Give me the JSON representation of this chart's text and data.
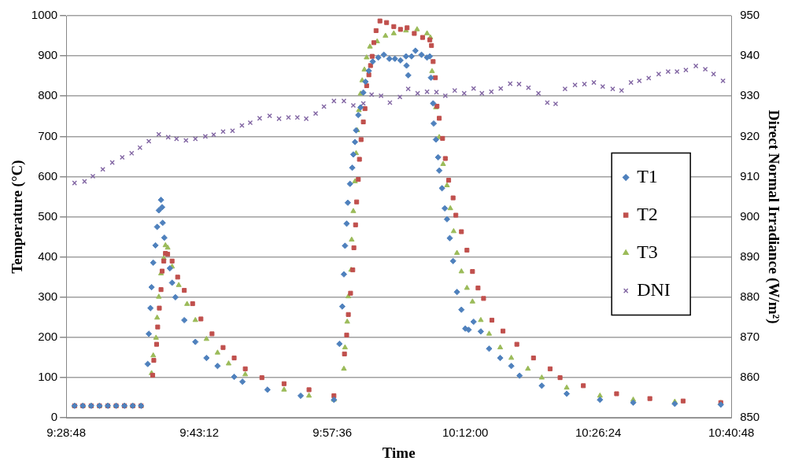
{
  "chart_data": {
    "type": "scatter",
    "xlabel": "Time",
    "ylabel": "Temperature (°C)",
    "y2label": "Direct Normal Irradiance (W/m²)",
    "xlim": [
      9.48,
      10.68
    ],
    "xticks": [
      {
        "value": 9.48,
        "label": "9:28:48"
      },
      {
        "value": 9.72,
        "label": "9:43:12"
      },
      {
        "value": 9.96,
        "label": "9:57:36"
      },
      {
        "value": 10.2,
        "label": "10:12:00"
      },
      {
        "value": 10.44,
        "label": "10:26:24"
      },
      {
        "value": 10.68,
        "label": "10:40:48"
      }
    ],
    "ylim": [
      0,
      1000
    ],
    "yticks": [
      0,
      100,
      200,
      300,
      400,
      500,
      600,
      700,
      800,
      900,
      1000
    ],
    "y2lim": [
      850,
      950
    ],
    "y2ticks": [
      850,
      860,
      870,
      880,
      890,
      900,
      910,
      920,
      930,
      940,
      950
    ],
    "grid": "y",
    "legend": "right",
    "series": [
      {
        "name": "T1",
        "color": "#4f81bd",
        "marker": "diamond",
        "x": [
          9.495,
          9.51,
          9.525,
          9.54,
          9.555,
          9.57,
          9.585,
          9.6,
          9.615,
          9.627,
          9.629,
          9.632,
          9.634,
          9.637,
          9.641,
          9.644,
          9.647,
          9.651,
          9.653,
          9.654,
          9.657,
          9.667,
          9.671,
          9.677,
          9.693,
          9.713,
          9.733,
          9.753,
          9.783,
          9.798,
          9.843,
          9.903,
          9.963,
          9.973,
          9.978,
          9.981,
          9.983,
          9.986,
          9.988,
          9.992,
          9.996,
          9.998,
          10.001,
          10.003,
          10.007,
          10.011,
          10.016,
          10.02,
          10.026,
          10.033,
          10.043,
          10.053,
          10.063,
          10.073,
          10.083,
          10.093,
          10.094,
          10.097,
          10.103,
          10.11,
          10.121,
          10.131,
          10.136,
          10.138,
          10.142,
          10.143,
          10.147,
          10.151,
          10.153,
          10.158,
          10.163,
          10.167,
          10.172,
          10.178,
          10.185,
          10.193,
          10.2,
          10.206,
          10.215,
          10.228,
          10.243,
          10.263,
          10.283,
          10.298,
          10.338,
          10.383,
          10.443,
          10.503,
          10.578,
          10.661
        ],
        "values": [
          30,
          30,
          30,
          30,
          30,
          30,
          30,
          30,
          30,
          134,
          209,
          273,
          325,
          386,
          429,
          475,
          516,
          542,
          524,
          485,
          448,
          372,
          336,
          300,
          243,
          189,
          149,
          129,
          102,
          90,
          70,
          55,
          45,
          184,
          277,
          357,
          428,
          483,
          535,
          582,
          622,
          655,
          686,
          715,
          753,
          772,
          809,
          836,
          863,
          886,
          896,
          903,
          893,
          893,
          889,
          899,
          876,
          852,
          899,
          913,
          903,
          896,
          899,
          846,
          782,
          732,
          692,
          648,
          615,
          571,
          521,
          494,
          447,
          390,
          313,
          269,
          222,
          219,
          239,
          215,
          172,
          149,
          129,
          105,
          80,
          60,
          45,
          38,
          35,
          33
        ]
      },
      {
        "name": "T2",
        "color": "#c0504d",
        "marker": "square",
        "x": [
          9.495,
          9.51,
          9.525,
          9.54,
          9.555,
          9.57,
          9.585,
          9.6,
          9.615,
          9.636,
          9.638,
          9.643,
          9.645,
          9.648,
          9.651,
          9.653,
          9.656,
          9.659,
          9.663,
          9.671,
          9.681,
          9.693,
          9.708,
          9.723,
          9.743,
          9.763,
          9.783,
          9.803,
          9.833,
          9.873,
          9.918,
          9.963,
          9.982,
          9.986,
          9.989,
          9.993,
          9.997,
          9.999,
          10.002,
          10.004,
          10.007,
          10.009,
          10.012,
          10.016,
          10.019,
          10.022,
          10.026,
          10.029,
          10.032,
          10.035,
          10.039,
          10.046,
          10.058,
          10.071,
          10.083,
          10.095,
          10.108,
          10.123,
          10.136,
          10.139,
          10.142,
          10.146,
          10.149,
          10.153,
          10.159,
          10.164,
          10.17,
          10.178,
          10.183,
          10.193,
          10.203,
          10.213,
          10.223,
          10.233,
          10.248,
          10.268,
          10.293,
          10.323,
          10.353,
          10.371,
          10.413,
          10.473,
          10.533,
          10.593,
          10.661
        ],
        "values": [
          30,
          30,
          30,
          30,
          30,
          30,
          30,
          30,
          30,
          106,
          143,
          183,
          226,
          273,
          319,
          365,
          390,
          409,
          407,
          390,
          350,
          317,
          284,
          246,
          209,
          175,
          149,
          122,
          100,
          85,
          70,
          55,
          159,
          206,
          257,
          310,
          368,
          423,
          480,
          537,
          593,
          643,
          692,
          736,
          769,
          826,
          853,
          876,
          899,
          933,
          963,
          987,
          983,
          973,
          966,
          970,
          956,
          946,
          940,
          926,
          886,
          846,
          775,
          745,
          695,
          645,
          591,
          547,
          504,
          463,
          417,
          364,
          323,
          297,
          243,
          216,
          183,
          149,
          122,
          100,
          80,
          60,
          48,
          42,
          38
        ]
      },
      {
        "name": "T3",
        "color": "#9bbb59",
        "marker": "triangle",
        "x": [
          9.495,
          9.51,
          9.525,
          9.54,
          9.555,
          9.57,
          9.585,
          9.6,
          9.615,
          9.634,
          9.637,
          9.642,
          9.644,
          9.647,
          9.651,
          9.656,
          9.659,
          9.663,
          9.671,
          9.683,
          9.698,
          9.713,
          9.733,
          9.753,
          9.773,
          9.803,
          9.873,
          9.918,
          9.963,
          9.981,
          9.983,
          9.987,
          9.989,
          9.994,
          9.995,
          9.998,
          10.001,
          10.003,
          10.005,
          10.008,
          10.011,
          10.014,
          10.018,
          10.022,
          10.028,
          10.041,
          10.056,
          10.071,
          10.093,
          10.113,
          10.131,
          10.137,
          10.14,
          10.147,
          10.153,
          10.16,
          10.167,
          10.173,
          10.179,
          10.185,
          10.193,
          10.203,
          10.213,
          10.228,
          10.243,
          10.263,
          10.283,
          10.313,
          10.338,
          10.383,
          10.443,
          10.503,
          10.578,
          10.661
        ],
        "values": [
          30,
          30,
          30,
          30,
          30,
          30,
          30,
          30,
          30,
          111,
          155,
          199,
          249,
          301,
          359,
          397,
          429,
          423,
          376,
          330,
          283,
          243,
          196,
          162,
          135,
          108,
          70,
          55,
          45,
          122,
          175,
          239,
          302,
          368,
          443,
          514,
          588,
          658,
          715,
          765,
          806,
          839,
          866,
          896,
          923,
          936,
          950,
          956,
          963,
          966,
          956,
          946,
          862,
          772,
          698,
          631,
          578,
          521,
          464,
          410,
          364,
          323,
          289,
          243,
          209,
          175,
          149,
          122,
          100,
          75,
          55,
          45,
          40,
          37
        ]
      },
      {
        "name": "DNI",
        "color": "#8064a2",
        "marker": "cross",
        "axis": "y2",
        "x": [
          9.495,
          9.513,
          9.528,
          9.546,
          9.563,
          9.581,
          9.598,
          9.613,
          9.629,
          9.647,
          9.664,
          9.679,
          9.696,
          9.713,
          9.731,
          9.746,
          9.763,
          9.78,
          9.797,
          9.812,
          9.829,
          9.847,
          9.864,
          9.881,
          9.897,
          9.913,
          9.93,
          9.945,
          9.963,
          9.981,
          9.998,
          10.016,
          10.031,
          10.048,
          10.064,
          10.082,
          10.097,
          10.114,
          10.131,
          10.148,
          10.164,
          10.181,
          10.198,
          10.215,
          10.23,
          10.247,
          10.264,
          10.281,
          10.297,
          10.314,
          10.332,
          10.348,
          10.363,
          10.38,
          10.398,
          10.415,
          10.432,
          10.448,
          10.466,
          10.482,
          10.499,
          10.514,
          10.531,
          10.549,
          10.566,
          10.582,
          10.598,
          10.616,
          10.633,
          10.648,
          10.665
        ],
        "values": [
          908.4,
          908.8,
          910.1,
          911.8,
          913.5,
          914.8,
          915.8,
          917.2,
          918.8,
          920.5,
          919.8,
          919.4,
          919.0,
          919.4,
          920.0,
          920.4,
          921.2,
          921.4,
          922.7,
          923.4,
          924.5,
          925.1,
          924.4,
          924.7,
          924.7,
          924.4,
          925.7,
          927.4,
          928.8,
          928.8,
          927.7,
          928.2,
          930.4,
          930.1,
          928.4,
          929.8,
          931.8,
          930.7,
          931.1,
          931.0,
          930.1,
          931.4,
          930.7,
          931.9,
          930.7,
          931.1,
          931.9,
          933.1,
          933.0,
          932.1,
          930.7,
          928.4,
          928.1,
          931.8,
          932.8,
          933.0,
          933.4,
          932.4,
          931.8,
          931.4,
          933.4,
          933.8,
          934.5,
          935.5,
          936.1,
          936.1,
          936.5,
          937.5,
          936.7,
          935.5,
          933.8
        ]
      }
    ]
  }
}
